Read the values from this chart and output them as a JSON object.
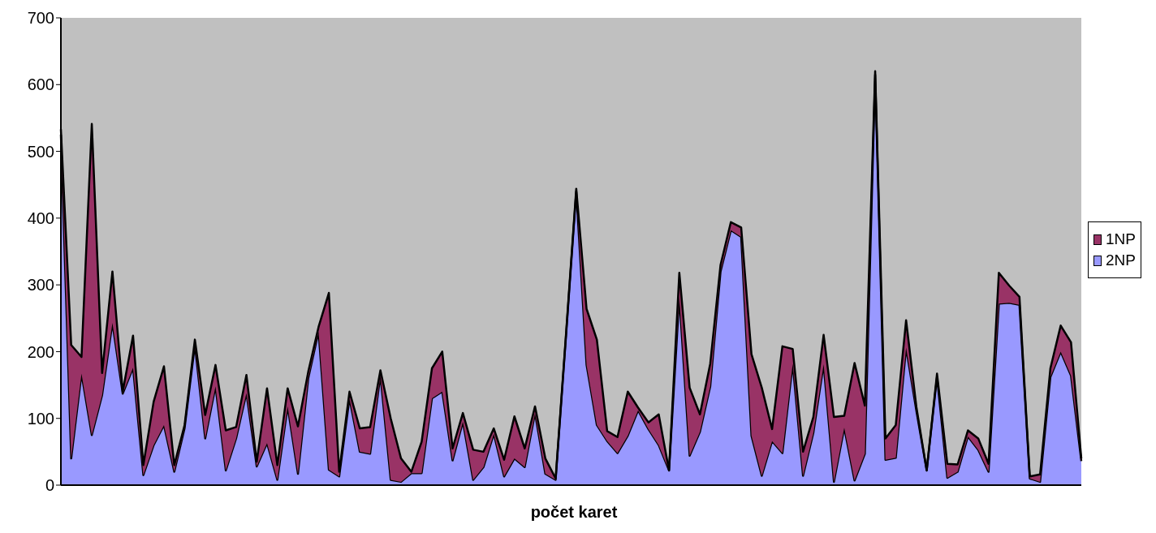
{
  "chart_data": {
    "type": "area",
    "stacked": true,
    "xlabel": "počet karet",
    "legend": "right",
    "ylim": [
      0,
      700
    ],
    "yticks": [
      0,
      100,
      200,
      300,
      400,
      500,
      600,
      700
    ],
    "categories": [
      null,
      null,
      null,
      null,
      null,
      null,
      null,
      null,
      null,
      null,
      null,
      null,
      null,
      null,
      null,
      null,
      null,
      null,
      null,
      null,
      null,
      null,
      null,
      null,
      null,
      null,
      null,
      null,
      null,
      null,
      null,
      null,
      null,
      null,
      null,
      null,
      null,
      null,
      null,
      null,
      null,
      null,
      null,
      null,
      null,
      null,
      null,
      null,
      null,
      null,
      null,
      null,
      null,
      null,
      null,
      null,
      null,
      null,
      null,
      null,
      null,
      null,
      null,
      null,
      null,
      null,
      null,
      null,
      null,
      null,
      null,
      null,
      null,
      null,
      null,
      null,
      null,
      null,
      null,
      null,
      null,
      null,
      null,
      null,
      null,
      null,
      null,
      null,
      null,
      null,
      null,
      null,
      null,
      null,
      null,
      null,
      null,
      null,
      null,
      null
    ],
    "series": [
      {
        "name": "2NP",
        "color": "#9999ff",
        "values": [
          525,
          40,
          167,
          75,
          135,
          243,
          137,
          176,
          15,
          60,
          90,
          20,
          85,
          210,
          70,
          148,
          22,
          70,
          138,
          28,
          63,
          8,
          118,
          17,
          160,
          230,
          23,
          13,
          130,
          50,
          47,
          165,
          8,
          5,
          18,
          18,
          130,
          140,
          37,
          95,
          8,
          27,
          77,
          13,
          40,
          27,
          108,
          17,
          8,
          222,
          440,
          180,
          90,
          66,
          48,
          74,
          112,
          84,
          60,
          22,
          282,
          44,
          80,
          148,
          320,
          382,
          372,
          74,
          14,
          66,
          48,
          182,
          14,
          78,
          181,
          5,
          86,
          7,
          47,
          615,
          38,
          41,
          206,
          111,
          22,
          162,
          11,
          20,
          73,
          53,
          20,
          272,
          273,
          270,
          10,
          5,
          162,
          200,
          164,
          36
        ]
      },
      {
        "name": "1NP",
        "color": "#993366",
        "values": [
          8,
          170,
          25,
          466,
          33,
          77,
          3,
          48,
          15,
          65,
          88,
          10,
          5,
          8,
          35,
          32,
          60,
          17,
          27,
          7,
          82,
          22,
          27,
          71,
          10,
          7,
          265,
          7,
          10,
          35,
          40,
          7,
          92,
          35,
          2,
          47,
          45,
          60,
          18,
          13,
          45,
          23,
          8,
          25,
          63,
          28,
          10,
          23,
          2,
          3,
          4,
          84,
          128,
          15,
          24,
          66,
          4,
          10,
          46,
          0,
          36,
          102,
          26,
          34,
          10,
          12,
          14,
          122,
          132,
          18,
          160,
          22,
          36,
          24,
          44,
          97,
          18,
          176,
          72,
          5,
          32,
          49,
          41,
          6,
          0,
          5,
          21,
          11,
          9,
          17,
          12,
          46,
          26,
          12,
          3,
          11,
          13,
          39,
          50,
          4
        ]
      }
    ]
  }
}
